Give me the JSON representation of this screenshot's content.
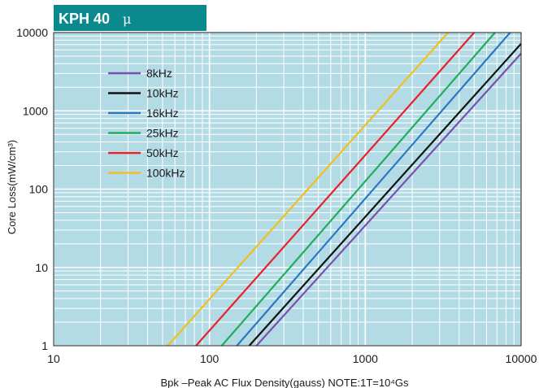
{
  "header": {
    "title": "KPH 40",
    "title_symbol": "μ",
    "color": "#0b8a8e"
  },
  "chart_data": {
    "type": "line",
    "xscale": "log",
    "yscale": "log",
    "xlim": [
      10,
      10000
    ],
    "ylim": [
      1,
      10000
    ],
    "xlabel": "Bpk –Peak AC Flux Density(gauss)  NOTE:1T=10⁴Gs",
    "ylabel": "Core Loss(mW/cm³)",
    "x_ticks": [
      "10",
      "100",
      "1000",
      "10000"
    ],
    "y_ticks": [
      "1",
      "10",
      "100",
      "1000",
      "10000"
    ],
    "grid": true,
    "legend_position": "upper-left",
    "series": [
      {
        "name": "8kHz",
        "color": "#7b4fb0",
        "x": [
          200,
          10000
        ],
        "y": [
          1,
          5400
        ]
      },
      {
        "name": "10kHz",
        "color": "#111111",
        "x": [
          180,
          10000
        ],
        "y": [
          1,
          7200
        ]
      },
      {
        "name": "16kHz",
        "color": "#2a78c4",
        "x": [
          150,
          8500
        ],
        "y": [
          1,
          10000
        ]
      },
      {
        "name": "25kHz",
        "color": "#1fae5a",
        "x": [
          120,
          6800
        ],
        "y": [
          1,
          10000
        ]
      },
      {
        "name": "50kHz",
        "color": "#e8202a",
        "x": [
          82,
          5000
        ],
        "y": [
          1,
          10000
        ]
      },
      {
        "name": "100kHz",
        "color": "#f2c01d",
        "x": [
          54,
          3400
        ],
        "y": [
          1,
          10000
        ]
      }
    ]
  }
}
